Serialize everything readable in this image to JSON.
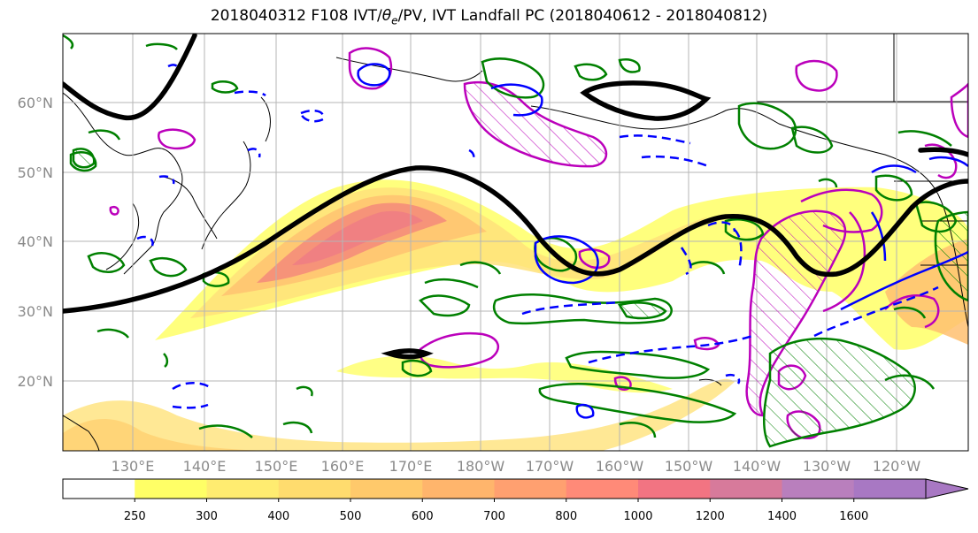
{
  "title": {
    "before": "2018040312 F108 IVT/",
    "theta": "θ",
    "sub": "e",
    "after": "/PV, IVT Landfall PC (2018040612 - 2018040812)"
  },
  "lat_labels": [
    "60°N",
    "50°N",
    "40°N",
    "30°N",
    "20°N"
  ],
  "lon_labels": [
    "130°E",
    "140°E",
    "150°E",
    "160°E",
    "170°E",
    "180°W",
    "170°W",
    "160°W",
    "150°W",
    "140°W",
    "130°W",
    "120°W"
  ],
  "colorbar": {
    "ticks": [
      "250",
      "300",
      "400",
      "500",
      "600",
      "700",
      "800",
      "1000",
      "1200",
      "1400",
      "1600"
    ],
    "colors": [
      "#ffffff",
      "#ffff66",
      "#ffec70",
      "#ffdc6e",
      "#ffc96b",
      "#ffb56c",
      "#ffa070",
      "#ff8a78",
      "#f27482",
      "#d77a9b",
      "#b97fbd",
      "#a878c3"
    ]
  },
  "legend_colors": {
    "theta_e_positive": "#0000ff",
    "theta_e_negative": "#0000ff",
    "pv_positive": "#bb00bb",
    "pv_negative": "#008000",
    "ivt_landfall_pc": "#000000"
  }
}
